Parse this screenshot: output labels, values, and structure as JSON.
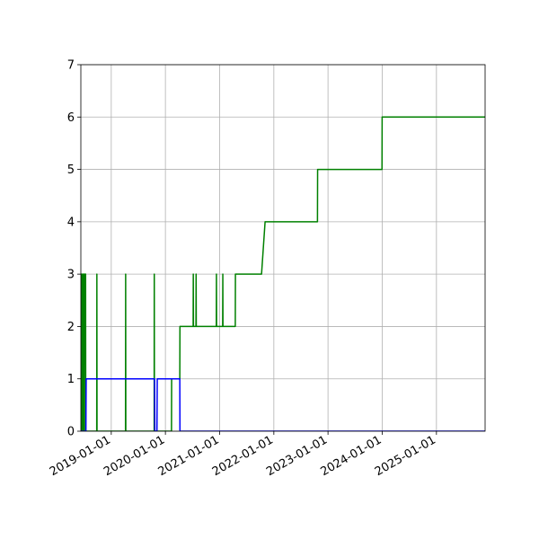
{
  "chart_data": {
    "type": "line",
    "xlim": [
      "2018-06-10",
      "2025-11-25"
    ],
    "xticks": [
      "2019-01-01",
      "2020-01-01",
      "2021-01-01",
      "2022-01-01",
      "2023-01-01",
      "2024-01-01",
      "2025-01-01"
    ],
    "ylim": [
      0,
      7
    ],
    "yticks": [
      0,
      1,
      2,
      3,
      4,
      5,
      6,
      7
    ],
    "grid": true,
    "series": [
      {
        "color": "#008000",
        "x": [
          "2018-06-10",
          "2018-06-11",
          "2018-06-14",
          "2018-06-15",
          "2018-06-20",
          "2018-06-21",
          "2018-06-28",
          "2018-06-29",
          "2018-07-03",
          "2018-07-04",
          "2018-07-12",
          "2018-07-13",
          "2018-09-25",
          "2018-09-26",
          "2018-09-27",
          "2019-04-07",
          "2019-04-08",
          "2019-04-09",
          "2019-10-17",
          "2019-10-18",
          "2019-10-19",
          "2020-02-11",
          "2020-02-12",
          "2020-04-07",
          "2020-04-08",
          "2020-07-06",
          "2020-07-07",
          "2020-07-08",
          "2020-07-25",
          "2020-07-26",
          "2020-07-27",
          "2020-12-09",
          "2020-12-10",
          "2020-12-11",
          "2021-01-21",
          "2021-01-22",
          "2021-01-23",
          "2021-04-16",
          "2021-04-17",
          "2021-10-10",
          "2021-11-03",
          "2022-10-22",
          "2022-10-23",
          "2023-12-31",
          "2024-01-01",
          "2025-11-25"
        ],
        "values": [
          0,
          3,
          3,
          0,
          0,
          3,
          3,
          0,
          0,
          3,
          3,
          0,
          0,
          3,
          0,
          0,
          3,
          0,
          0,
          3,
          0,
          0,
          1,
          1,
          2,
          2,
          3,
          2,
          2,
          3,
          2,
          2,
          3,
          2,
          2,
          3,
          2,
          2,
          3,
          3,
          4,
          4,
          5,
          5,
          6,
          6
        ]
      },
      {
        "color": "#0000ff",
        "x": [
          "2018-06-10",
          "2018-07-14",
          "2018-07-16",
          "2019-10-20",
          "2019-10-22",
          "2019-11-05",
          "2019-11-07",
          "2020-04-07",
          "2020-04-08",
          "2025-11-25"
        ],
        "values": [
          0,
          0,
          1,
          1,
          0,
          0,
          1,
          1,
          0,
          0
        ]
      }
    ]
  }
}
